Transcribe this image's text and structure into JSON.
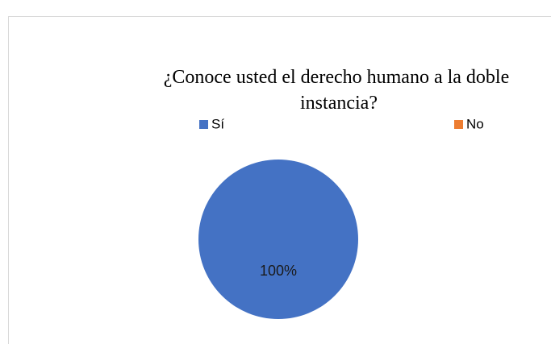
{
  "chart_data": {
    "type": "pie",
    "title": "¿Conoce usted el derecho humano a la doble instancia?",
    "categories": [
      "Sí",
      "No"
    ],
    "values": [
      100,
      0
    ],
    "value_labels": [
      "100%",
      null
    ],
    "colors": [
      "#4472c4",
      "#ed7d31"
    ],
    "legend": "top"
  }
}
